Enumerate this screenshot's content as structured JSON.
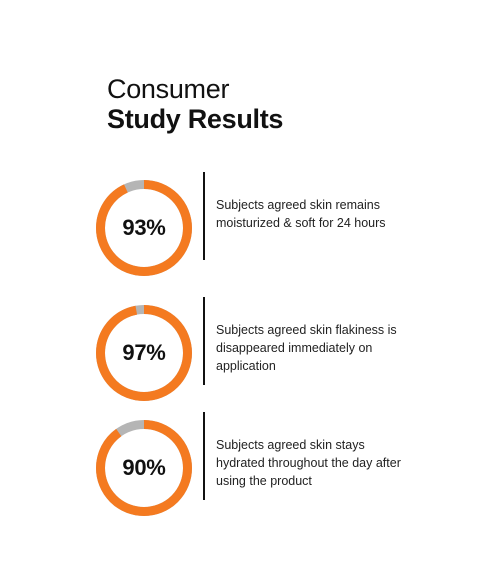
{
  "title": {
    "line1": "Consumer",
    "line2": "Study Results"
  },
  "colors": {
    "accent": "#F47A20",
    "track": "#B5B5B5",
    "text": "#111111"
  },
  "stats": [
    {
      "value": 93,
      "label": "93%",
      "description": "Subjects agreed skin remains moisturized & soft for 24 hours"
    },
    {
      "value": 97,
      "label": "97%",
      "description": "Subjects agreed skin flakiness is disappeared immediately on application"
    },
    {
      "value": 90,
      "label": "90%",
      "description": "Subjects agreed skin stays hydrated throughout the day after using the product"
    }
  ]
}
